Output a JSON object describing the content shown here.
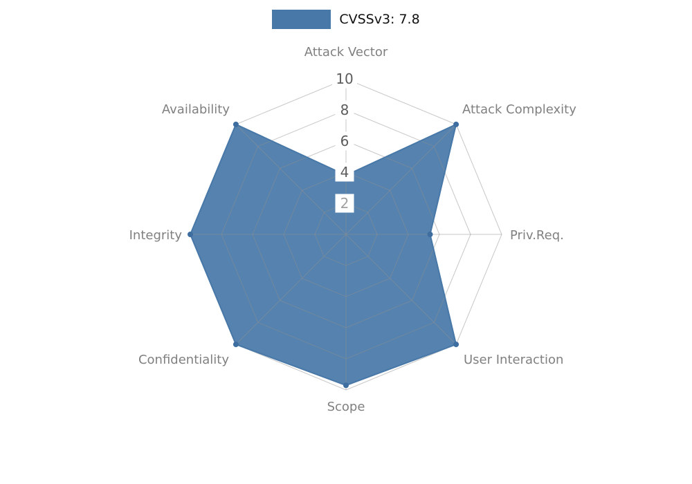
{
  "legend": {
    "label": "CVSSv3: 7.8",
    "swatch_color": "#4878a8"
  },
  "chart_data": {
    "type": "radar",
    "title": "CVSSv3: 7.8",
    "axes": [
      "Attack Vector",
      "Attack Complexity",
      "Priv.Req.",
      "User Interaction",
      "Scope",
      "Confidentiality",
      "Integrity",
      "Availability"
    ],
    "series": [
      {
        "name": "CVSSv3: 7.8",
        "values": [
          3.8,
          10,
          5.4,
          10,
          9.7,
          10,
          10,
          10
        ]
      }
    ],
    "axis_range": [
      0,
      10
    ],
    "ticks": [
      {
        "value": 10,
        "color": "#5c5c5c"
      },
      {
        "value": 8,
        "color": "#5c5c5c"
      },
      {
        "value": 6,
        "color": "#5c5c5c"
      },
      {
        "value": 4,
        "color": "#5c5c5c"
      },
      {
        "value": 2,
        "color": "#a0a0a0"
      }
    ],
    "grid": true,
    "legend_position": "top",
    "fill_color": "#4878a8",
    "marker_color": "#3e6da0",
    "grid_color": "#8f8f8f",
    "label_color": "#808080"
  }
}
